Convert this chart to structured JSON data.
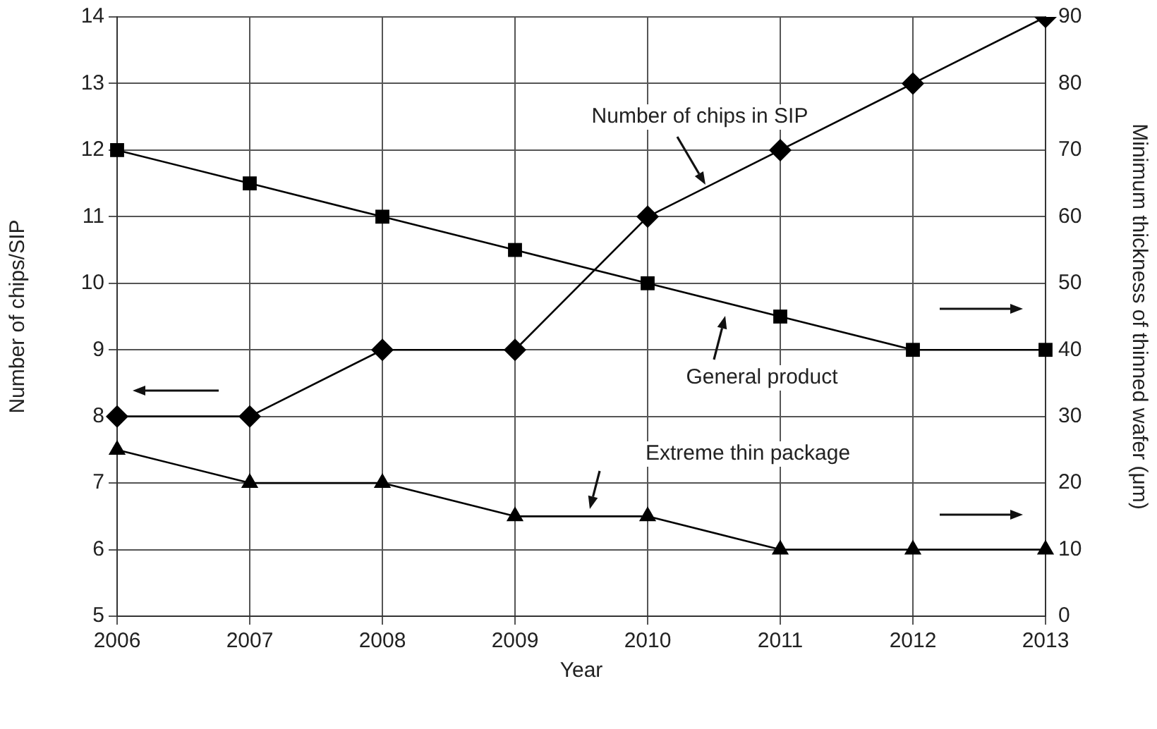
{
  "chart_data": {
    "type": "line",
    "xlabel": "Year",
    "ylabel": "Number of chips/SIP",
    "y2label": "Minimum thickness of thinned wafer (μm)",
    "categories": [
      "2006",
      "2007",
      "2008",
      "2009",
      "2010",
      "2011",
      "2012",
      "2013"
    ],
    "series": [
      {
        "name": "Number of chips in SIP",
        "color": "#000000",
        "marker": "diamond",
        "values": [
          8,
          8,
          9,
          9,
          11,
          12,
          13,
          14
        ]
      },
      {
        "name": "General product",
        "color": "#000000",
        "marker": "square",
        "axis": "y2",
        "values": [
          70,
          65,
          60,
          55,
          50,
          45,
          40,
          40
        ]
      },
      {
        "name": "Extreme thin package",
        "color": "#000000",
        "marker": "triangle",
        "axis": "y2",
        "values": [
          25,
          20,
          20,
          15,
          15,
          10,
          10,
          10
        ]
      }
    ],
    "ylim": [
      5,
      14
    ],
    "yticks": [
      5,
      6,
      7,
      8,
      9,
      10,
      11,
      12,
      13,
      14
    ],
    "y2lim": [
      0,
      90
    ],
    "y2ticks": [
      0,
      10,
      20,
      30,
      40,
      50,
      60,
      70,
      80,
      90
    ],
    "grid": true,
    "legend": false,
    "line_style": "solid"
  }
}
